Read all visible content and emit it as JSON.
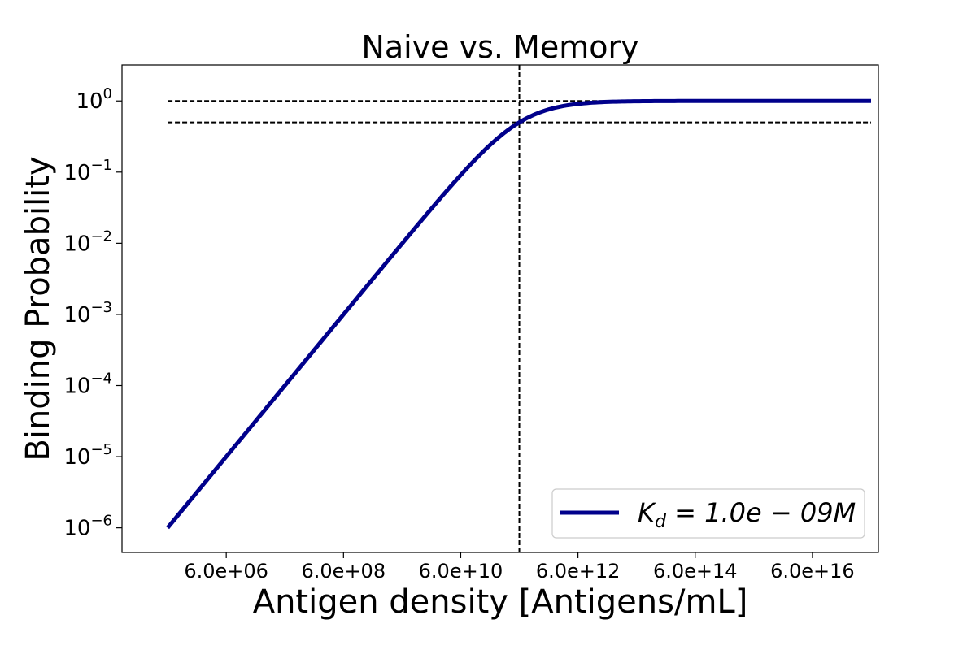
{
  "chart_data": {
    "type": "line",
    "title": "Naive vs. Memory",
    "xlabel": "Antigen density [Antigens/mL]",
    "ylabel": "Binding Probability",
    "x_scale": "log",
    "y_scale": "log",
    "xlim": [
      100000.0,
      8e+17
    ],
    "ylim": [
      4.5e-07,
      3.2
    ],
    "x_ticks": [
      {
        "value": 6000000.0,
        "label": "6.0e+06"
      },
      {
        "value": 600000000.0,
        "label": "6.0e+08"
      },
      {
        "value": 60000000000.0,
        "label": "6.0e+10"
      },
      {
        "value": 6000000000000.0,
        "label": "6.0e+12"
      },
      {
        "value": 600000000000000.0,
        "label": "6.0e+14"
      },
      {
        "value": 6e+16,
        "label": "6.0e+16"
      }
    ],
    "y_ticks": [
      {
        "value": 1,
        "base": "10",
        "exp": "0"
      },
      {
        "value": 0.1,
        "base": "10",
        "exp": "−1"
      },
      {
        "value": 0.01,
        "base": "10",
        "exp": "−2"
      },
      {
        "value": 0.001,
        "base": "10",
        "exp": "−3"
      },
      {
        "value": 0.0001,
        "base": "10",
        "exp": "−4"
      },
      {
        "value": 1e-05,
        "base": "10",
        "exp": "−5"
      },
      {
        "value": 1e-06,
        "base": "10",
        "exp": "−6"
      }
    ],
    "series": [
      {
        "name": "K_d = 1.0e−09 M",
        "color": "#00008b",
        "x_range": [
          600000.0,
          6e+17
        ],
        "ec50": 600000000000.0,
        "model": "x / (x + ec50)"
      }
    ],
    "reference_lines": [
      {
        "orientation": "horizontal",
        "y": 1.0,
        "x_range": [
          600000.0,
          6e+17
        ],
        "style": "dashed",
        "color": "#000000"
      },
      {
        "orientation": "horizontal",
        "y": 0.5,
        "x_range": [
          600000.0,
          6e+17
        ],
        "style": "dashed",
        "color": "#000000"
      },
      {
        "orientation": "vertical",
        "x": 600000000000.0,
        "style": "dashed",
        "color": "#000000"
      }
    ],
    "legend": {
      "position": "bottom-right",
      "math": {
        "main": "K",
        "sub": "d",
        "rest": " = 1.0e − 09M"
      }
    },
    "grid": false
  }
}
